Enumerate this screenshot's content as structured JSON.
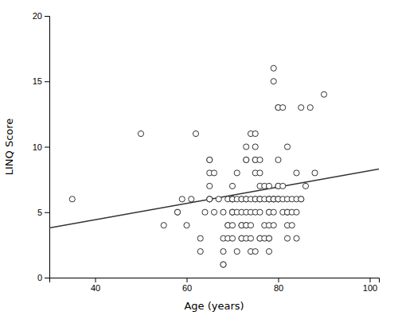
{
  "chart_data": {
    "type": "scatter",
    "x_label": "Age (years)",
    "y_label": "LINQ Score",
    "series": [
      {
        "type": "scatter",
        "marker": "circle",
        "color": "#333333",
        "x": [
          35,
          50,
          55,
          58,
          58,
          59,
          60,
          61,
          62,
          63,
          63,
          64,
          65,
          65,
          65,
          65,
          65,
          65,
          65,
          66,
          66,
          67,
          68,
          68,
          68,
          68,
          68,
          69,
          69,
          69,
          69,
          70,
          70,
          70,
          70,
          70,
          70,
          70,
          70,
          70,
          70,
          71,
          71,
          71,
          71,
          72,
          72,
          72,
          72,
          72,
          72,
          72,
          73,
          73,
          73,
          73,
          73,
          73,
          73,
          73,
          73,
          74,
          74,
          74,
          74,
          74,
          74,
          75,
          75,
          75,
          75,
          75,
          75,
          75,
          75,
          75,
          76,
          76,
          76,
          76,
          76,
          76,
          76,
          76,
          76,
          77,
          77,
          77,
          77,
          78,
          78,
          78,
          78,
          78,
          78,
          78,
          78,
          78,
          78,
          79,
          79,
          79,
          79,
          79,
          79,
          79,
          79,
          80,
          80,
          80,
          80,
          80,
          80,
          80,
          80,
          81,
          81,
          81,
          81,
          82,
          82,
          82,
          82,
          82,
          82,
          83,
          83,
          83,
          84,
          84,
          84,
          84,
          85,
          85,
          85,
          86,
          87,
          88,
          90
        ],
        "values": [
          6,
          11,
          4,
          5,
          5,
          6,
          4,
          6,
          11,
          2,
          3,
          5,
          6,
          6,
          6,
          7,
          8,
          9,
          9,
          5,
          8,
          6,
          1,
          1,
          2,
          3,
          5,
          3,
          4,
          4,
          6,
          3,
          4,
          5,
          5,
          5,
          6,
          6,
          6,
          6,
          7,
          2,
          5,
          6,
          8,
          3,
          3,
          4,
          4,
          5,
          6,
          6,
          3,
          4,
          4,
          5,
          6,
          6,
          9,
          9,
          10,
          2,
          3,
          4,
          5,
          6,
          11,
          2,
          5,
          6,
          6,
          8,
          9,
          9,
          10,
          11,
          3,
          3,
          5,
          6,
          6,
          6,
          7,
          8,
          9,
          3,
          4,
          6,
          7,
          2,
          3,
          3,
          4,
          5,
          5,
          6,
          6,
          6,
          7,
          4,
          5,
          6,
          6,
          6,
          6,
          16,
          15,
          6,
          6,
          6,
          7,
          7,
          9,
          13,
          13,
          5,
          6,
          7,
          13,
          3,
          4,
          5,
          5,
          6,
          10,
          4,
          5,
          6,
          3,
          5,
          6,
          8,
          6,
          6,
          13,
          7,
          13,
          8,
          14
        ]
      },
      {
        "type": "line",
        "line_style": "solid",
        "color": "#333333",
        "x": [
          30,
          102
        ],
        "values": [
          3.8,
          8.3
        ]
      }
    ],
    "xlim": [
      30,
      102
    ],
    "ylim": [
      0,
      20
    ],
    "xticks": [
      40,
      60,
      80,
      100
    ],
    "yticks": [
      0,
      5,
      10,
      15,
      20
    ],
    "grid": false
  }
}
